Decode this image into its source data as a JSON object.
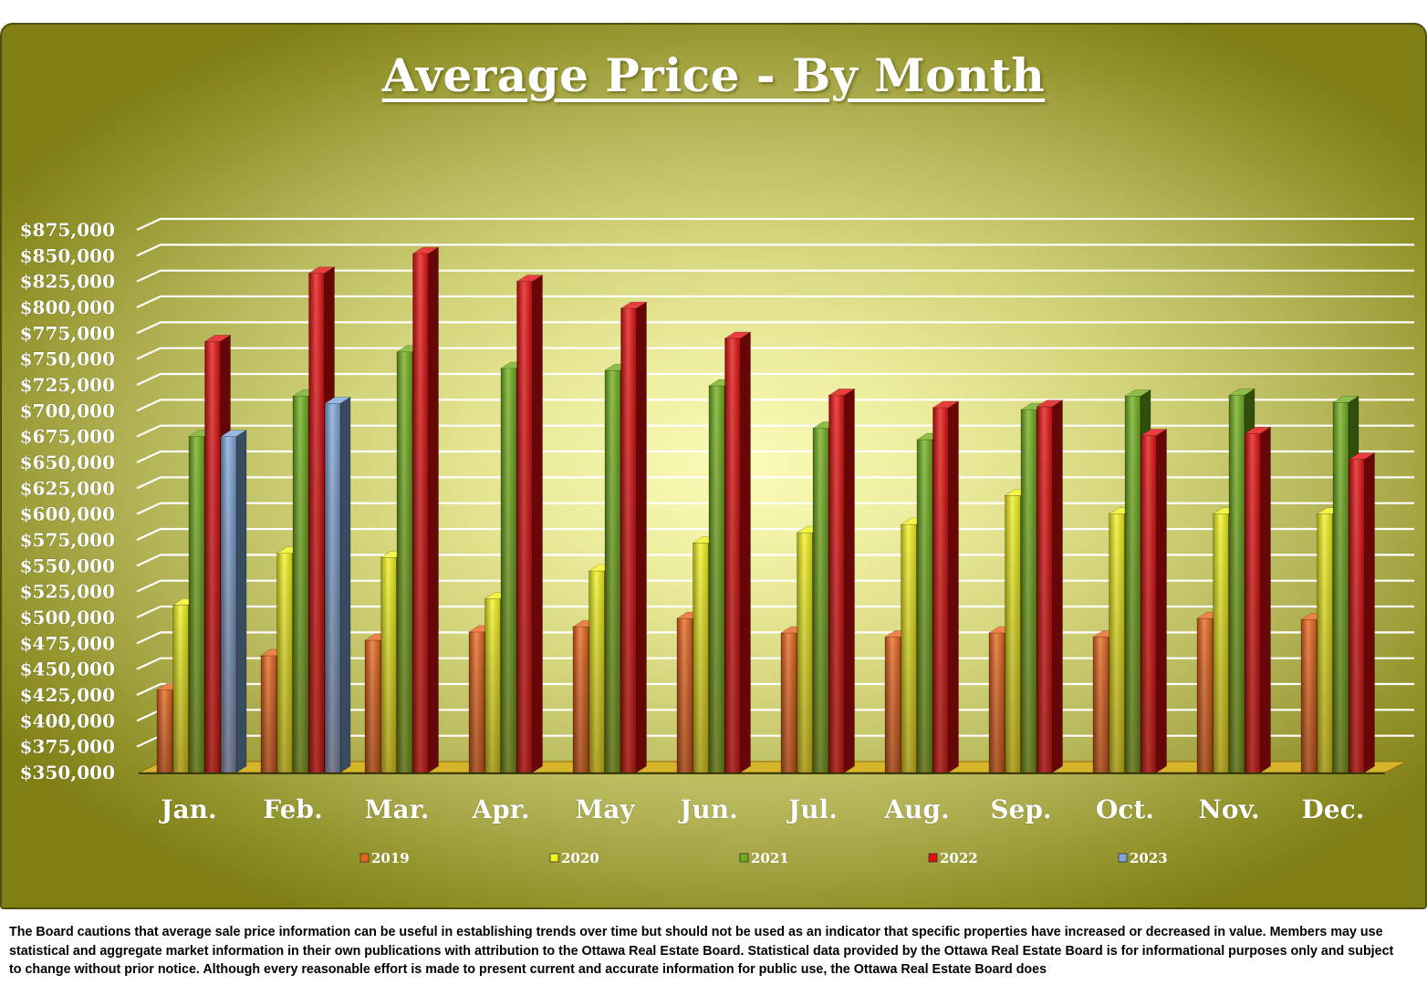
{
  "title": "Average Price - By Month",
  "disclaimer": "The Board cautions that average sale price information can be useful in establishing trends over time but should not be used as an indicator that specific properties have increased or decreased in value.  Members may use statistical and aggregate market information in their own publications with attribution to the Ottawa Real Estate Board. Statistical data provided by the Ottawa Real Estate Board is for informational purposes only and subject to change without prior notice. Although every reasonable effort is made to present current and accurate information for public use, the Ottawa Real Estate Board does",
  "colors": {
    "2019": "#e8641a",
    "2020": "#f2f21c",
    "2021": "#6fae1a",
    "2022": "#e30e0e",
    "2023": "#7fa6d8"
  },
  "chart_data": {
    "type": "bar",
    "title": "Average Price - By Month",
    "categories": [
      "Jan.",
      "Feb.",
      "Mar.",
      "Apr.",
      "May",
      "Jun.",
      "Jul.",
      "Aug.",
      "Sep.",
      "Oct.",
      "Nov.",
      "Dec."
    ],
    "yticks": [
      "$350,000",
      "$375,000",
      "$400,000",
      "$425,000",
      "$450,000",
      "$475,000",
      "$500,000",
      "$525,000",
      "$550,000",
      "$575,000",
      "$600,000",
      "$625,000",
      "$650,000",
      "$675,000",
      "$700,000",
      "$725,000",
      "$750,000",
      "$775,000",
      "$800,000",
      "$825,000",
      "$850,000",
      "$875,000"
    ],
    "ylim": [
      350000,
      875000
    ],
    "grid": true,
    "legend_position": "bottom",
    "series": [
      {
        "name": "2019",
        "values": [
          430000,
          463000,
          478000,
          486000,
          491000,
          499000,
          485000,
          481000,
          485000,
          481000,
          499000,
          498000
        ]
      },
      {
        "name": "2020",
        "values": [
          512000,
          562000,
          558000,
          518000,
          545000,
          572000,
          582000,
          590000,
          618000,
          600000,
          600000,
          600000
        ]
      },
      {
        "name": "2021",
        "values": [
          675000,
          714000,
          757000,
          741000,
          739000,
          724000,
          683000,
          672000,
          701000,
          714000,
          715000,
          708000
        ]
      },
      {
        "name": "2022",
        "values": [
          767000,
          833000,
          852000,
          825000,
          799000,
          770000,
          715000,
          703000,
          704000,
          676000,
          678000,
          653000
        ]
      },
      {
        "name": "2023",
        "values": [
          675000,
          707000,
          null,
          null,
          null,
          null,
          null,
          null,
          null,
          null,
          null,
          null
        ]
      }
    ]
  }
}
